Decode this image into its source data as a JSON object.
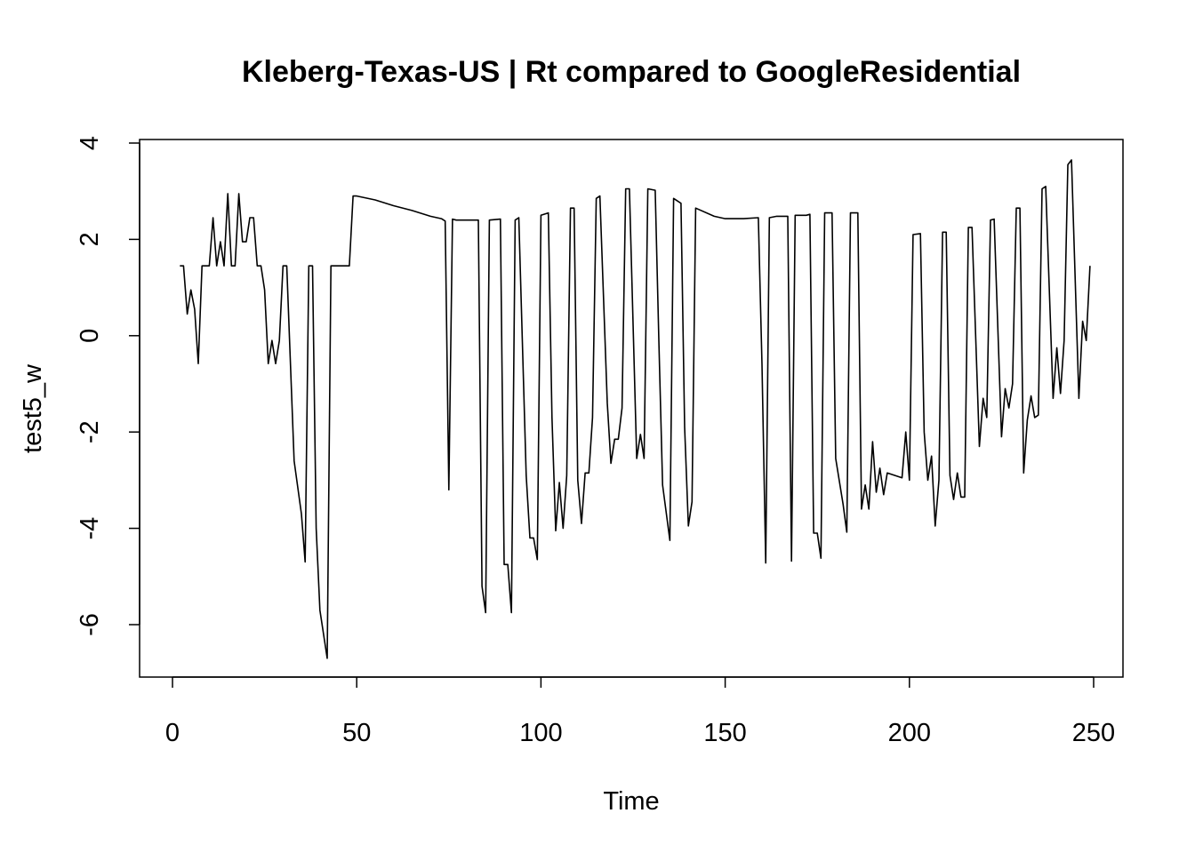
{
  "chart_data": {
    "type": "line",
    "title": "Kleberg-Texas-US | Rt compared to GoogleResidential",
    "xlabel": "Time",
    "ylabel": "test5_w",
    "xlim": [
      0,
      250
    ],
    "ylim": [
      -6.8,
      4
    ],
    "x_ticks": [
      0,
      50,
      100,
      150,
      200,
      250
    ],
    "y_ticks": [
      -6,
      -4,
      -2,
      0,
      2,
      4
    ],
    "grid": false,
    "legend": "none",
    "line_color": "#000000",
    "series": [
      {
        "points": [
          [
            2,
            1.45
          ],
          [
            3,
            1.45
          ],
          [
            4,
            0.45
          ],
          [
            5,
            0.95
          ],
          [
            6,
            0.55
          ],
          [
            7,
            -0.58
          ],
          [
            8,
            1.45
          ],
          [
            9,
            1.45
          ],
          [
            10,
            1.45
          ],
          [
            11,
            2.45
          ],
          [
            12,
            1.45
          ],
          [
            13,
            1.95
          ],
          [
            14,
            1.45
          ],
          [
            15,
            2.95
          ],
          [
            16,
            1.45
          ],
          [
            17,
            1.45
          ],
          [
            18,
            2.95
          ],
          [
            19,
            1.95
          ],
          [
            20,
            1.95
          ],
          [
            21,
            2.45
          ],
          [
            22,
            2.45
          ],
          [
            23,
            1.45
          ],
          [
            24,
            1.45
          ],
          [
            25,
            0.95
          ],
          [
            26,
            -0.58
          ],
          [
            27,
            -0.1
          ],
          [
            28,
            -0.58
          ],
          [
            29,
            -0.1
          ],
          [
            30,
            1.45
          ],
          [
            31,
            1.45
          ],
          [
            33,
            -2.6
          ],
          [
            35,
            -3.7
          ],
          [
            36,
            -4.7
          ],
          [
            37,
            1.45
          ],
          [
            38,
            1.45
          ],
          [
            39,
            -4.0
          ],
          [
            40,
            -5.7
          ],
          [
            42,
            -6.7
          ],
          [
            43,
            1.45
          ],
          [
            48,
            1.45
          ],
          [
            49,
            2.9
          ],
          [
            50,
            2.9
          ],
          [
            55,
            2.82
          ],
          [
            60,
            2.7
          ],
          [
            65,
            2.6
          ],
          [
            70,
            2.48
          ],
          [
            73,
            2.43
          ],
          [
            74,
            2.38
          ],
          [
            75,
            -3.2
          ],
          [
            76,
            2.42
          ],
          [
            77,
            2.4
          ],
          [
            83,
            2.4
          ],
          [
            84,
            -5.2
          ],
          [
            85,
            -5.75
          ],
          [
            86,
            2.4
          ],
          [
            89,
            2.42
          ],
          [
            90,
            -4.75
          ],
          [
            91,
            -4.75
          ],
          [
            92,
            -5.75
          ],
          [
            93,
            2.4
          ],
          [
            94,
            2.45
          ],
          [
            96,
            -2.9
          ],
          [
            97,
            -4.2
          ],
          [
            98,
            -4.2
          ],
          [
            99,
            -4.65
          ],
          [
            100,
            2.5
          ],
          [
            102,
            2.55
          ],
          [
            103,
            -1.7
          ],
          [
            104,
            -4.05
          ],
          [
            105,
            -3.05
          ],
          [
            106,
            -4.0
          ],
          [
            107,
            -2.9
          ],
          [
            108,
            2.65
          ],
          [
            109,
            2.65
          ],
          [
            110,
            -3.0
          ],
          [
            111,
            -3.9
          ],
          [
            112,
            -2.85
          ],
          [
            113,
            -2.85
          ],
          [
            114,
            -1.7
          ],
          [
            115,
            2.85
          ],
          [
            116,
            2.9
          ],
          [
            118,
            -1.4
          ],
          [
            119,
            -2.65
          ],
          [
            120,
            -2.15
          ],
          [
            121,
            -2.15
          ],
          [
            122,
            -1.5
          ],
          [
            123,
            3.05
          ],
          [
            124,
            3.05
          ],
          [
            126,
            -2.55
          ],
          [
            127,
            -2.05
          ],
          [
            128,
            -2.55
          ],
          [
            129,
            3.05
          ],
          [
            131,
            3.02
          ],
          [
            132,
            -0.1
          ],
          [
            133,
            -3.1
          ],
          [
            135,
            -4.25
          ],
          [
            136,
            2.85
          ],
          [
            138,
            2.75
          ],
          [
            139,
            -1.9
          ],
          [
            140,
            -3.95
          ],
          [
            141,
            -3.45
          ],
          [
            142,
            2.65
          ],
          [
            147,
            2.48
          ],
          [
            150,
            2.43
          ],
          [
            155,
            2.43
          ],
          [
            159,
            2.45
          ],
          [
            160,
            -0.6
          ],
          [
            161,
            -4.72
          ],
          [
            162,
            2.45
          ],
          [
            164,
            2.48
          ],
          [
            167,
            2.48
          ],
          [
            168,
            -4.68
          ],
          [
            169,
            2.5
          ],
          [
            172,
            2.5
          ],
          [
            173,
            2.52
          ],
          [
            174,
            -4.1
          ],
          [
            175,
            -4.1
          ],
          [
            176,
            -4.62
          ],
          [
            177,
            2.55
          ],
          [
            179,
            2.55
          ],
          [
            180,
            -2.55
          ],
          [
            182,
            -3.5
          ],
          [
            183,
            -4.08
          ],
          [
            184,
            2.55
          ],
          [
            186,
            2.55
          ],
          [
            187,
            -3.6
          ],
          [
            188,
            -3.1
          ],
          [
            189,
            -3.6
          ],
          [
            190,
            -2.2
          ],
          [
            191,
            -3.25
          ],
          [
            192,
            -2.75
          ],
          [
            193,
            -3.3
          ],
          [
            194,
            -2.85
          ],
          [
            196,
            -2.9
          ],
          [
            198,
            -2.95
          ],
          [
            199,
            -2.0
          ],
          [
            200,
            -3.0
          ],
          [
            201,
            2.1
          ],
          [
            203,
            2.12
          ],
          [
            204,
            -2.0
          ],
          [
            205,
            -3.0
          ],
          [
            206,
            -2.5
          ],
          [
            207,
            -3.95
          ],
          [
            208,
            -3.0
          ],
          [
            209,
            2.15
          ],
          [
            210,
            2.15
          ],
          [
            211,
            -2.9
          ],
          [
            212,
            -3.4
          ],
          [
            213,
            -2.85
          ],
          [
            214,
            -3.35
          ],
          [
            215,
            -3.35
          ],
          [
            216,
            2.25
          ],
          [
            217,
            2.25
          ],
          [
            219,
            -2.3
          ],
          [
            220,
            -1.3
          ],
          [
            221,
            -1.7
          ],
          [
            222,
            2.4
          ],
          [
            223,
            2.42
          ],
          [
            225,
            -2.1
          ],
          [
            226,
            -1.1
          ],
          [
            227,
            -1.5
          ],
          [
            228,
            -1.0
          ],
          [
            229,
            2.65
          ],
          [
            230,
            2.65
          ],
          [
            231,
            -2.85
          ],
          [
            232,
            -1.75
          ],
          [
            233,
            -1.25
          ],
          [
            234,
            -1.7
          ],
          [
            235,
            -1.65
          ],
          [
            236,
            3.05
          ],
          [
            237,
            3.1
          ],
          [
            239,
            -1.3
          ],
          [
            240,
            -0.25
          ],
          [
            241,
            -1.2
          ],
          [
            242,
            -0.1
          ],
          [
            243,
            3.55
          ],
          [
            244,
            3.65
          ],
          [
            246,
            -1.3
          ],
          [
            247,
            0.3
          ],
          [
            248,
            -0.1
          ],
          [
            249,
            1.45
          ]
        ]
      }
    ]
  }
}
